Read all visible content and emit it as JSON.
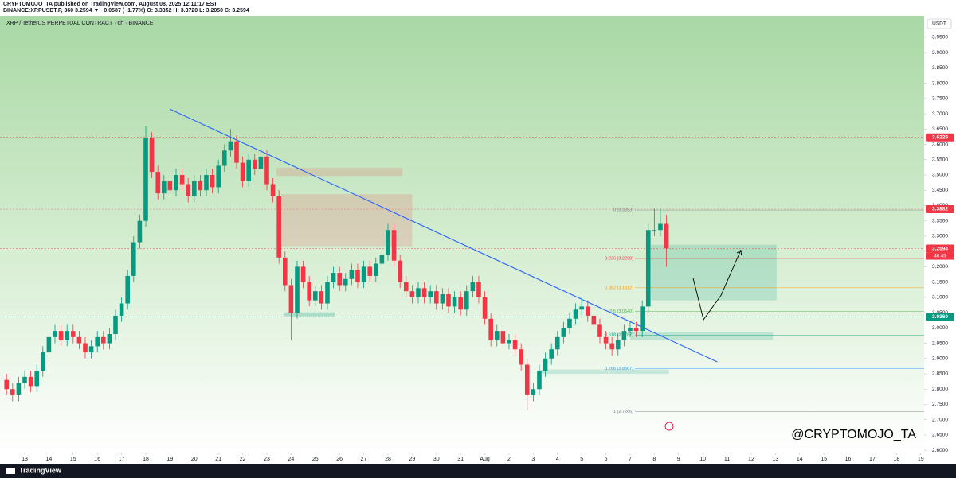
{
  "header": {
    "line1": "CRYPTOMOJO_TA published on TradingView.com, August 08, 2025 12:11:17 EST",
    "line2": "BINANCE:XRPUSDT.P, 360  3.2594 ▼ −0.0587 (−1.77%)  O: 3.3352  H: 3.3720  L: 3.2050  C: 3.2594"
  },
  "watermark": "@CRYPTOMOJO_TA",
  "footer_brand": "TradingView",
  "chart_data": {
    "type": "candlestick",
    "title": "XRP / TetherUS PERPETUAL CONTRACT · 6h · BINANCE",
    "y_unit": "USDT",
    "up_color": "#089981",
    "down_color": "#f23645",
    "xlim": [
      11.98,
      50.14
    ],
    "ylim": [
      2.59,
      4.02
    ],
    "grid": false,
    "x": [
      12.25,
      12.5,
      12.75,
      13,
      13.25,
      13.5,
      13.75,
      14,
      14.25,
      14.5,
      14.75,
      15,
      15.25,
      15.5,
      15.75,
      16,
      16.25,
      16.5,
      16.75,
      17,
      17.25,
      17.5,
      17.75,
      18,
      18.25,
      18.5,
      18.75,
      19,
      19.25,
      19.5,
      19.75,
      20,
      20.25,
      20.5,
      20.75,
      21,
      21.25,
      21.5,
      21.75,
      22,
      22.25,
      22.5,
      22.75,
      23,
      23.25,
      23.5,
      23.75,
      24,
      24.25,
      24.5,
      24.75,
      25,
      25.25,
      25.5,
      25.75,
      26,
      26.25,
      26.5,
      26.75,
      27,
      27.25,
      27.5,
      27.75,
      28,
      28.25,
      28.5,
      28.75,
      29,
      29.25,
      29.5,
      29.75,
      30,
      30.25,
      30.5,
      30.75,
      31,
      31.25,
      31.5,
      31.75,
      32,
      32.25,
      32.5,
      32.75,
      33,
      33.25,
      33.5,
      33.75,
      34,
      34.25,
      34.5,
      34.75,
      35,
      35.25,
      35.5,
      35.75,
      36,
      36.25,
      36.5,
      36.75,
      37,
      37.25,
      37.5,
      37.75,
      38,
      38.25,
      38.5,
      38.75,
      39,
      39.25,
      39.5
    ],
    "open": [
      2.83,
      2.8,
      2.78,
      2.82,
      2.84,
      2.81,
      2.86,
      2.92,
      2.97,
      2.99,
      2.96,
      2.99,
      2.97,
      2.95,
      2.92,
      2.94,
      2.97,
      2.95,
      2.98,
      3.04,
      3.08,
      3.17,
      3.28,
      3.35,
      3.62,
      3.51,
      3.44,
      3.48,
      3.45,
      3.5,
      3.47,
      3.43,
      3.48,
      3.45,
      3.5,
      3.46,
      3.53,
      3.58,
      3.61,
      3.54,
      3.48,
      3.55,
      3.52,
      3.56,
      3.47,
      3.43,
      3.23,
      3.14,
      3.05,
      3.2,
      3.15,
      3.09,
      3.12,
      3.08,
      3.15,
      3.18,
      3.14,
      3.16,
      3.19,
      3.15,
      3.2,
      3.17,
      3.21,
      3.24,
      3.32,
      3.22,
      3.15,
      3.12,
      3.1,
      3.13,
      3.1,
      3.12,
      3.08,
      3.11,
      3.07,
      3.1,
      3.06,
      3.12,
      3.15,
      3.1,
      3.03,
      2.96,
      2.99,
      2.95,
      2.96,
      2.93,
      2.88,
      2.78,
      2.8,
      2.86,
      2.9,
      2.93,
      2.97,
      3.0,
      3.03,
      3.06,
      3.07,
      3.04,
      3.01,
      2.97,
      2.95,
      2.93,
      2.96,
      2.99,
      3.0,
      2.99,
      3.07,
      3.32,
      3.32,
      3.34
    ],
    "high": [
      2.85,
      2.82,
      2.84,
      2.86,
      2.86,
      2.88,
      2.94,
      2.99,
      3.01,
      3.01,
      3.01,
      3.01,
      2.99,
      2.97,
      2.96,
      2.99,
      2.99,
      3.0,
      3.06,
      3.1,
      3.19,
      3.3,
      3.37,
      3.66,
      3.64,
      3.53,
      3.5,
      3.5,
      3.52,
      3.52,
      3.49,
      3.5,
      3.5,
      3.52,
      3.52,
      3.55,
      3.6,
      3.65,
      3.63,
      3.56,
      3.57,
      3.57,
      3.58,
      3.58,
      3.49,
      3.45,
      3.25,
      3.16,
      3.22,
      3.22,
      3.17,
      3.14,
      3.14,
      3.17,
      3.2,
      3.2,
      3.18,
      3.21,
      3.21,
      3.22,
      3.22,
      3.23,
      3.26,
      3.34,
      3.34,
      3.24,
      3.17,
      3.14,
      3.15,
      3.15,
      3.14,
      3.14,
      3.13,
      3.13,
      3.12,
      3.12,
      3.14,
      3.17,
      3.17,
      3.12,
      3.05,
      3.01,
      3.01,
      2.98,
      2.98,
      2.95,
      2.9,
      2.82,
      2.88,
      2.92,
      2.95,
      2.99,
      3.02,
      3.05,
      3.08,
      3.1,
      3.09,
      3.06,
      3.03,
      2.99,
      2.97,
      2.98,
      3.01,
      3.02,
      3.02,
      3.09,
      3.34,
      3.39,
      3.39,
      3.37
    ],
    "low": [
      2.78,
      2.76,
      2.76,
      2.8,
      2.79,
      2.79,
      2.84,
      2.9,
      2.95,
      2.94,
      2.94,
      2.95,
      2.93,
      2.9,
      2.9,
      2.92,
      2.93,
      2.93,
      2.96,
      3.02,
      3.06,
      3.15,
      3.26,
      3.33,
      3.49,
      3.42,
      3.42,
      3.43,
      3.43,
      3.45,
      3.41,
      3.41,
      3.43,
      3.43,
      3.44,
      3.44,
      3.51,
      3.56,
      3.52,
      3.46,
      3.46,
      3.5,
      3.5,
      3.45,
      3.41,
      3.21,
      3.12,
      2.96,
      3.03,
      3.13,
      3.07,
      3.07,
      3.06,
      3.06,
      3.13,
      3.12,
      3.12,
      3.14,
      3.13,
      3.13,
      3.15,
      3.15,
      3.19,
      3.22,
      3.2,
      3.13,
      3.1,
      3.08,
      3.08,
      3.08,
      3.08,
      3.06,
      3.06,
      3.05,
      3.05,
      3.04,
      3.04,
      3.1,
      3.08,
      3.01,
      2.94,
      2.94,
      2.93,
      2.93,
      2.91,
      2.86,
      2.73,
      2.76,
      2.78,
      2.84,
      2.88,
      2.91,
      2.95,
      2.98,
      3.01,
      3.04,
      3.02,
      2.99,
      2.95,
      2.93,
      2.91,
      2.91,
      2.94,
      2.97,
      2.97,
      2.97,
      3.05,
      3.3,
      3.3,
      3.2
    ],
    "close": [
      2.8,
      2.78,
      2.82,
      2.84,
      2.81,
      2.86,
      2.92,
      2.97,
      2.99,
      2.96,
      2.99,
      2.97,
      2.95,
      2.92,
      2.94,
      2.97,
      2.95,
      2.98,
      3.04,
      3.08,
      3.17,
      3.28,
      3.35,
      3.62,
      3.51,
      3.44,
      3.48,
      3.45,
      3.5,
      3.47,
      3.43,
      3.48,
      3.45,
      3.5,
      3.46,
      3.53,
      3.58,
      3.61,
      3.54,
      3.48,
      3.55,
      3.52,
      3.56,
      3.47,
      3.43,
      3.23,
      3.14,
      3.05,
      3.2,
      3.15,
      3.09,
      3.12,
      3.08,
      3.15,
      3.18,
      3.14,
      3.16,
      3.19,
      3.15,
      3.2,
      3.17,
      3.21,
      3.24,
      3.32,
      3.22,
      3.15,
      3.12,
      3.1,
      3.13,
      3.1,
      3.12,
      3.08,
      3.11,
      3.07,
      3.1,
      3.06,
      3.12,
      3.15,
      3.1,
      3.03,
      2.96,
      2.99,
      2.95,
      2.96,
      2.93,
      2.88,
      2.78,
      2.8,
      2.86,
      2.9,
      2.93,
      2.97,
      3.0,
      3.03,
      3.06,
      3.07,
      3.04,
      3.01,
      2.97,
      2.95,
      2.93,
      2.96,
      2.99,
      3.0,
      2.99,
      3.07,
      3.32,
      3.32,
      3.34,
      3.26
    ],
    "yticks": [
      {
        "value": 2.6,
        "label": "2.6000"
      },
      {
        "value": 2.65,
        "label": "2.6500"
      },
      {
        "value": 2.7,
        "label": "2.7000"
      },
      {
        "value": 2.75,
        "label": "2.7500"
      },
      {
        "value": 2.8,
        "label": "2.8000"
      },
      {
        "value": 2.85,
        "label": "2.8500"
      },
      {
        "value": 2.9,
        "label": "2.9000"
      },
      {
        "value": 2.95,
        "label": "2.9500"
      },
      {
        "value": 3.0,
        "label": "3.0000"
      },
      {
        "value": 3.05,
        "label": "3.0500"
      },
      {
        "value": 3.1,
        "label": "3.1000"
      },
      {
        "value": 3.15,
        "label": "3.1500"
      },
      {
        "value": 3.2,
        "label": "3.2000"
      },
      {
        "value": 3.25,
        "label": "3.2500"
      },
      {
        "value": 3.3,
        "label": "3.3000"
      },
      {
        "value": 3.35,
        "label": "3.3500"
      },
      {
        "value": 3.4,
        "label": "3.4000"
      },
      {
        "value": 3.45,
        "label": "3.4500"
      },
      {
        "value": 3.5,
        "label": "3.5000"
      },
      {
        "value": 3.55,
        "label": "3.5500"
      },
      {
        "value": 3.6,
        "label": "3.6000"
      },
      {
        "value": 3.65,
        "label": "3.6500"
      },
      {
        "value": 3.7,
        "label": "3.7000"
      },
      {
        "value": 3.75,
        "label": "3.7500"
      },
      {
        "value": 3.8,
        "label": "3.8000"
      },
      {
        "value": 3.85,
        "label": "3.8500"
      },
      {
        "value": 3.9,
        "label": "3.9000"
      },
      {
        "value": 3.95,
        "label": "3.9500"
      }
    ],
    "xticks": [
      13,
      14,
      15,
      16,
      17,
      18,
      19,
      20,
      21,
      22,
      23,
      24,
      25,
      26,
      27,
      28,
      29,
      30,
      31,
      {
        "value": 32,
        "label": "Aug"
      },
      {
        "value": 33,
        "label": "2"
      },
      {
        "value": 34,
        "label": "3"
      },
      {
        "value": 35,
        "label": "4"
      },
      {
        "value": 36,
        "label": "5"
      },
      {
        "value": 37,
        "label": "6"
      },
      {
        "value": 38,
        "label": "7"
      },
      {
        "value": 39,
        "label": "8"
      },
      {
        "value": 40,
        "label": "9"
      },
      {
        "value": 41,
        "label": "10"
      },
      {
        "value": 42,
        "label": "11"
      },
      {
        "value": 43,
        "label": "12"
      },
      {
        "value": 44,
        "label": "13"
      },
      {
        "value": 45,
        "label": "14"
      },
      {
        "value": 46,
        "label": "15"
      },
      {
        "value": 47,
        "label": "16"
      },
      {
        "value": 48,
        "label": "17"
      },
      {
        "value": 49,
        "label": "18"
      },
      {
        "value": 50,
        "label": "19"
      }
    ],
    "price_tags": [
      {
        "value": 3.6229,
        "label": "3.6229",
        "color": "#f23645"
      },
      {
        "value": 3.3882,
        "label": "3.3882",
        "color": "#f23645"
      },
      {
        "value": 3.2594,
        "label": "3.2594",
        "color": "#f23645"
      },
      {
        "value": 3.036,
        "label": "3.0360",
        "color": "#089981"
      }
    ],
    "countdown": "40:45",
    "fib_levels": [
      {
        "value": 3.3853,
        "label": "0 (3.3853)",
        "color": "#787b86"
      },
      {
        "value": 3.2268,
        "label": "0.236 (3.2268)",
        "color": "#f23645"
      },
      {
        "value": 3.1312,
        "label": "0.382 (3.1312)",
        "color": "#ff9800"
      },
      {
        "value": 3.054,
        "label": "0.5 (3.0540)",
        "color": "#4caf50"
      },
      {
        "value": 2.9767,
        "label": "0.618 (2.9767)",
        "color": "#089981"
      },
      {
        "value": 2.8667,
        "label": "0.786 (2.8667)",
        "color": "#2196f3"
      },
      {
        "value": 2.7266,
        "label": "1 (2.7266)",
        "color": "#787b86"
      }
    ],
    "fib_x": 38.2,
    "trendline": {
      "x": [
        19.0,
        41.6
      ],
      "y": [
        3.715,
        2.889
      ],
      "color": "#2962ff"
    },
    "projection": {
      "x": [
        40.6,
        41.03,
        41.75,
        42.57
      ],
      "y": [
        3.163,
        3.027,
        3.106,
        3.254
      ],
      "color": "#000000"
    },
    "zones": [
      {
        "x": [
          23.6,
          29.0
        ],
        "y": [
          3.267,
          3.437
        ],
        "color": "rgba(242,54,69,0.16)"
      },
      {
        "x": [
          23.4,
          28.6
        ],
        "y": [
          3.497,
          3.523
        ],
        "color": "rgba(242,54,69,0.16)"
      },
      {
        "x": [
          23.7,
          25.8
        ],
        "y": [
          3.038,
          3.051
        ],
        "color": "rgba(8,153,129,0.25)"
      },
      {
        "x": [
          38.0,
          43.9
        ],
        "y": [
          2.96,
          2.986
        ],
        "color": "rgba(8,153,129,0.18)"
      },
      {
        "x": [
          34.3,
          39.6
        ],
        "y": [
          2.85,
          2.864
        ],
        "color": "rgba(8,153,129,0.18)"
      },
      {
        "x": [
          38.86,
          44.05
        ],
        "y": [
          3.09,
          3.272
        ],
        "color": "rgba(8,153,129,0.18)"
      }
    ]
  }
}
